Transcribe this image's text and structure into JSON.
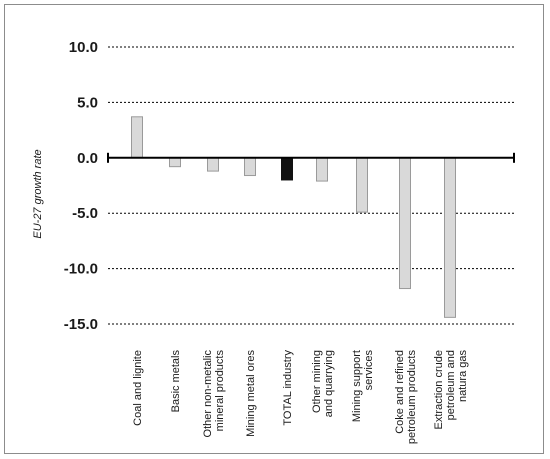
{
  "chart_data": {
    "type": "bar",
    "ylabel": "EU-27 growth rate",
    "ylim": [
      -15,
      10
    ],
    "yticks": [
      "10.0",
      "5.0",
      "0.0",
      "-5.0",
      "-10.0",
      "-15.0"
    ],
    "grid": true,
    "categories": [
      [
        "Coal and lignite"
      ],
      [
        "Basic metals"
      ],
      [
        "Other non-metalic",
        "mineral products"
      ],
      [
        "Mining metal ores"
      ],
      [
        "TOTAL industry"
      ],
      [
        "Other  mining",
        "and quarrying"
      ],
      [
        "Mining support",
        "services"
      ],
      [
        "Coke  and  refined",
        "petroleum products"
      ],
      [
        "Extraction crude",
        "petroleum    and",
        "natura gas"
      ]
    ],
    "values": [
      3.7,
      -0.8,
      -1.2,
      -1.6,
      -2.0,
      -2.1,
      -4.9,
      -11.8,
      -14.4
    ],
    "colors": {
      "bar": "#d9d9d9",
      "bar_highlight": "#111111",
      "bar_border": "#9a9a9a",
      "axis": "#000000"
    },
    "highlight_index": 4
  }
}
